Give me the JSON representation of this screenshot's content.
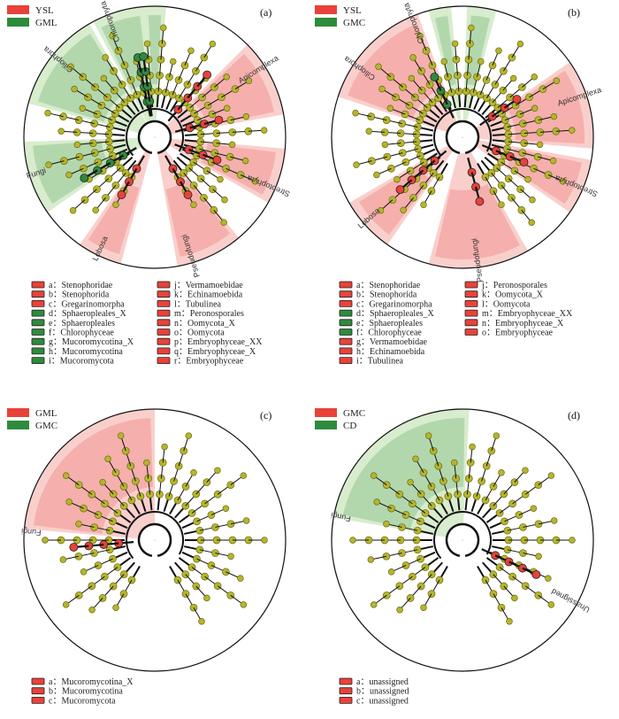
{
  "colors": {
    "red": "#e8423a",
    "green": "#2e8b3c",
    "node_yellow": "#b5b52e",
    "node_edge": "#6b6b10",
    "shade_red": "#f4a7a3",
    "shade_green": "#b8dca6",
    "branch": "#111111"
  },
  "panels": [
    {
      "tag": "(a)",
      "legend": [
        {
          "label": "YSL",
          "color": "red"
        },
        {
          "label": "GML",
          "color": "green"
        }
      ],
      "clades": [
        {
          "text": "Chlorophyta",
          "color": "green"
        },
        {
          "text": "Ciliophora",
          "color": "green"
        },
        {
          "text": "Apicomplexa",
          "color": "red"
        },
        {
          "text": "Streptophyta",
          "color": "red"
        },
        {
          "text": "Pseudofungi",
          "color": "red"
        },
        {
          "text": "Lobosa",
          "color": "red"
        },
        {
          "text": "Fungi",
          "color": "green"
        }
      ],
      "key_left": [
        {
          "text": "a：Stenophoridae",
          "color": "red"
        },
        {
          "text": "b：Stenophorida",
          "color": "red"
        },
        {
          "text": "c：Gregarinomorpha",
          "color": "red"
        },
        {
          "text": "d：Sphaeropleales_X",
          "color": "green"
        },
        {
          "text": "e：Sphaeropleales",
          "color": "green"
        },
        {
          "text": "f：Chlorophyceae",
          "color": "green"
        },
        {
          "text": "g：Mucoromycotina_X",
          "color": "green"
        },
        {
          "text": "h：Mucoromycotina",
          "color": "green"
        },
        {
          "text": "i：Mucoromycota",
          "color": "green"
        }
      ],
      "key_right": [
        {
          "text": "j：Vermamoebidae",
          "color": "red"
        },
        {
          "text": "k：Echinamoebida",
          "color": "red"
        },
        {
          "text": "l：Tubulinea",
          "color": "red"
        },
        {
          "text": "m：Peronosporales",
          "color": "red"
        },
        {
          "text": "n：Oomycota_X",
          "color": "red"
        },
        {
          "text": "o：Oomycota",
          "color": "red"
        },
        {
          "text": "p：Embryophyceae_XX",
          "color": "red"
        },
        {
          "text": "q：Embryophyceae_X",
          "color": "red"
        },
        {
          "text": "r：Embryophyceae",
          "color": "red"
        }
      ]
    },
    {
      "tag": "(b)",
      "legend": [
        {
          "label": "YSL",
          "color": "red"
        },
        {
          "label": "GMC",
          "color": "green"
        }
      ],
      "clades": [
        {
          "text": "Chlorophyta",
          "color": "green"
        },
        {
          "text": "Ciliophora",
          "color": "red"
        },
        {
          "text": "Apicomplexa",
          "color": "red"
        },
        {
          "text": "Streptophyta",
          "color": "red"
        },
        {
          "text": "Pseudofungi",
          "color": "red"
        },
        {
          "text": "Lobosa",
          "color": "red"
        }
      ],
      "key_left": [
        {
          "text": "a：Stenophoridae",
          "color": "red"
        },
        {
          "text": "b：Stenophorida",
          "color": "red"
        },
        {
          "text": "c：Gregarinomorpha",
          "color": "red"
        },
        {
          "text": "d：Sphaeropleales_X",
          "color": "green"
        },
        {
          "text": "e：Sphaeropleales",
          "color": "green"
        },
        {
          "text": "f：Chlorophyceae",
          "color": "green"
        },
        {
          "text": "g：Vermamoebidae",
          "color": "red"
        },
        {
          "text": "h：Echinamoebida",
          "color": "red"
        },
        {
          "text": "i：Tubulinea",
          "color": "red"
        }
      ],
      "key_right": [
        {
          "text": "j：Peronosporales",
          "color": "red"
        },
        {
          "text": "k：Oomycota_X",
          "color": "red"
        },
        {
          "text": "l：Oomycota",
          "color": "red"
        },
        {
          "text": "m：Embryophyceae_XX",
          "color": "red"
        },
        {
          "text": "n：Embryophyceae_X",
          "color": "red"
        },
        {
          "text": "o：Embryophyceae",
          "color": "red"
        }
      ]
    },
    {
      "tag": "(c)",
      "legend": [
        {
          "label": "GML",
          "color": "red"
        },
        {
          "label": "GMC",
          "color": "green"
        }
      ],
      "clades": [
        {
          "text": "Fungi",
          "color": "red"
        }
      ],
      "key_left": [
        {
          "text": "a：Mucoromycotina_X",
          "color": "red"
        },
        {
          "text": "b：Mucoromycotina",
          "color": "red"
        },
        {
          "text": "c：Mucoromycota",
          "color": "red"
        }
      ],
      "key_right": []
    },
    {
      "tag": "(d)",
      "legend": [
        {
          "label": "GMC",
          "color": "red"
        },
        {
          "label": "CD",
          "color": "green"
        }
      ],
      "clades": [
        {
          "text": "Fungi",
          "color": "green"
        },
        {
          "text": "Unassigned",
          "color": "red"
        }
      ],
      "key_left": [
        {
          "text": "a：unassigned",
          "color": "red"
        },
        {
          "text": "b：unassigned",
          "color": "red"
        },
        {
          "text": "c：unassigned",
          "color": "red"
        }
      ],
      "key_right": []
    }
  ]
}
